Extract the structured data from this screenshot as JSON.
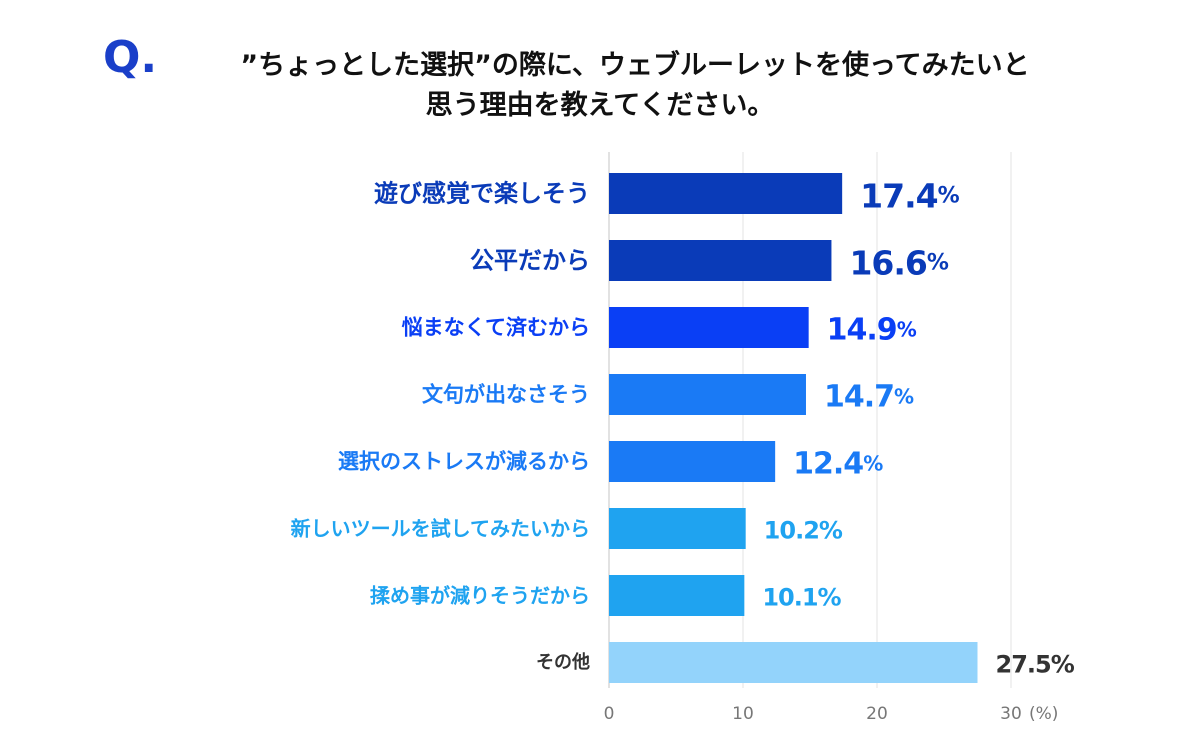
{
  "question": {
    "mark": "Q.",
    "line1": "”ちょっとした選択”の際に、ウェブルーレットを使ってみたいと",
    "line2": "思う理由を教えてください。"
  },
  "chart_data": {
    "type": "bar",
    "orientation": "horizontal",
    "categories": [
      "遊び感覚で楽しそう",
      "公平だから",
      "悩まなくて済むから",
      "文句が出なさそう",
      "選択のストレスが減るから",
      "新しいツールを試してみたいから",
      "揉め事が減りそうだから",
      "その他"
    ],
    "values": [
      17.4,
      16.6,
      14.9,
      14.7,
      12.4,
      10.2,
      10.1,
      27.5
    ],
    "value_labels": [
      "17.4",
      "16.6",
      "14.9",
      "14.7",
      "12.4",
      "10.2",
      "10.1",
      "27.5"
    ],
    "value_suffix": "%",
    "bar_colors": [
      "#0a3bb8",
      "#0a3bb8",
      "#0a3ff5",
      "#1a7af5",
      "#1a7af5",
      "#1fa3f0",
      "#1fa3f0",
      "#93d3fb"
    ],
    "label_colors": [
      "#0a3bb8",
      "#0a3bb8",
      "#0a3ff5",
      "#1a7af5",
      "#1a7af5",
      "#1fa3f0",
      "#1fa3f0",
      "#333333"
    ],
    "x_ticks": [
      "0",
      "10",
      "20",
      "30"
    ],
    "x_unit": "(%)",
    "xlim": [
      0,
      30
    ],
    "grid": true
  }
}
